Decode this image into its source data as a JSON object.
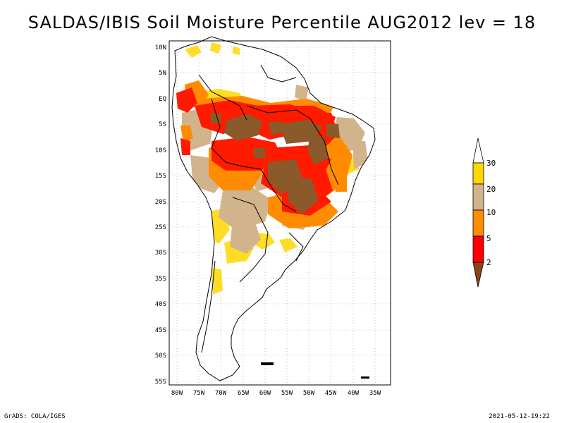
{
  "title": "SALDAS/IBIS Soil Moisture Percentile AUG2012 lev = 18",
  "footer": {
    "left": "GrADS: COLA/IGES",
    "right": "2021-05-12-19:22"
  },
  "axes": {
    "lat_labels": [
      "10N",
      "5N",
      "EQ",
      "5S",
      "10S",
      "15S",
      "20S",
      "25S",
      "30S",
      "35S",
      "40S",
      "45S",
      "50S",
      "55S"
    ],
    "lon_labels": [
      "80W",
      "75W",
      "70W",
      "65W",
      "60W",
      "55W",
      "50W",
      "45W",
      "40W",
      "35W"
    ]
  },
  "colorbar": {
    "levels": [
      "2",
      "5",
      "10",
      "20",
      "30"
    ],
    "colors": [
      "#8B4513",
      "#FF0000",
      "#FF8C00",
      "#D2B48C",
      "#FFD700",
      "#FFFFFF"
    ]
  },
  "colors": {
    "very_dry": "#8B5A2B",
    "dry": "#FF1A00",
    "orange": "#FF8C00",
    "tan": "#D2B48C",
    "yellow": "#FFD700"
  }
}
